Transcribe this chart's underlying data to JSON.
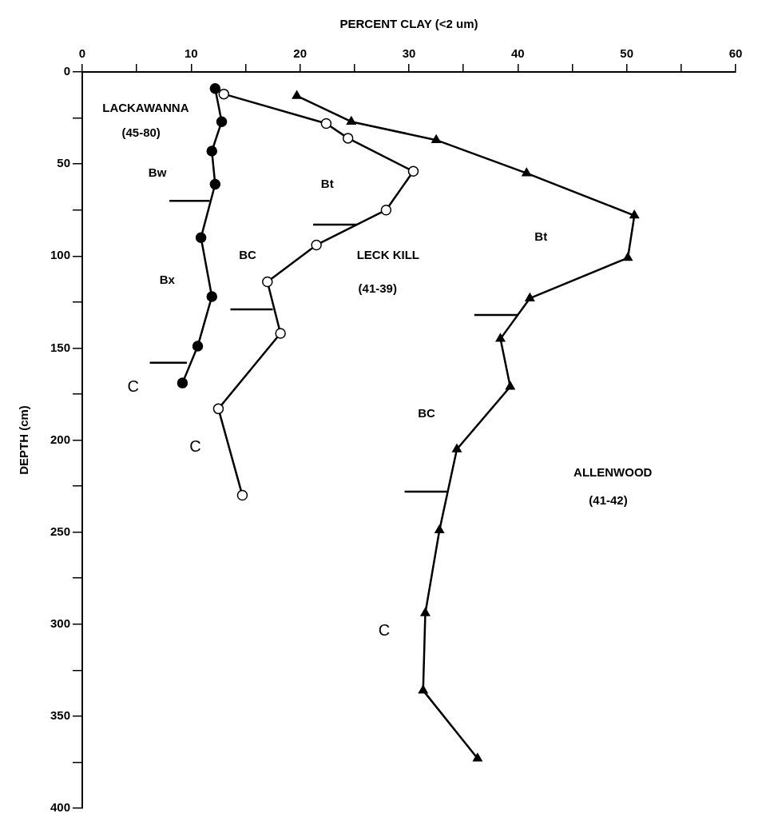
{
  "chart_data": {
    "type": "line",
    "xlabel": "PERCENT CLAY (<2 um)",
    "ylabel": "DEPTH (cm)",
    "xlim": [
      0,
      60
    ],
    "ylim": [
      400,
      0
    ],
    "xticks": [
      0,
      {
        "value": 5,
        "label": null
      },
      10,
      {
        "value": 15,
        "label": null
      },
      20,
      {
        "value": 25,
        "label": null
      },
      30,
      {
        "value": 35,
        "label": null
      },
      40,
      {
        "value": 45,
        "label": null
      },
      50,
      {
        "value": 55,
        "label": null
      },
      60
    ],
    "yticks": [
      0,
      {
        "value": 25,
        "label": null
      },
      50,
      {
        "value": 75,
        "label": null
      },
      100,
      {
        "value": 125,
        "label": null
      },
      150,
      {
        "value": 175,
        "label": null
      },
      200,
      {
        "value": 225,
        "label": null
      },
      250,
      {
        "value": 275,
        "label": null
      },
      300,
      {
        "value": 325,
        "label": null
      },
      350,
      {
        "value": 375,
        "label": null
      },
      400
    ],
    "grid": false,
    "legend": false,
    "series": [
      {
        "color": "#000000",
        "marker": "circle",
        "x": [
          12.2,
          12.8,
          11.9,
          12.2,
          10.9,
          11.9,
          10.6,
          9.2
        ],
        "values": [
          9,
          27,
          43,
          61,
          90,
          122,
          149,
          169
        ]
      },
      {
        "color": "#000000",
        "marker": "circle",
        "colors": [
          "#ffffff",
          "#ffffff",
          "#ffffff",
          "#ffffff",
          "#ffffff",
          "#ffffff",
          "#ffffff",
          "#ffffff",
          "#ffffff",
          "#ffffff"
        ],
        "x": [
          13.0,
          22.4,
          24.4,
          30.4,
          27.9,
          21.5,
          17.0,
          18.2,
          12.5,
          14.7
        ],
        "values": [
          12,
          28,
          36,
          54,
          75,
          94,
          114,
          142,
          183,
          230
        ]
      },
      {
        "color": "#000000",
        "marker": "triangle",
        "x": [
          19.7,
          24.7,
          32.5,
          40.8,
          50.7,
          50.1,
          41.1,
          38.4,
          39.3,
          34.4,
          32.8,
          31.5,
          31.3,
          36.3
        ],
        "values": [
          13,
          27,
          37,
          55,
          78,
          101,
          123,
          145,
          171,
          205,
          249,
          294,
          336,
          373
        ]
      },
      {
        "color": "#000000",
        "marker": "none",
        "x": [
          8.0,
          11.7
        ],
        "values": [
          70,
          70
        ]
      },
      {
        "color": "#000000",
        "marker": "none",
        "x": [
          6.2,
          9.6
        ],
        "values": [
          158,
          158
        ]
      },
      {
        "color": "#000000",
        "marker": "none",
        "x": [
          21.2,
          25.2
        ],
        "values": [
          83,
          83
        ]
      },
      {
        "color": "#000000",
        "marker": "none",
        "x": [
          13.6,
          17.5
        ],
        "values": [
          129,
          129
        ]
      },
      {
        "color": "#000000",
        "marker": "none",
        "x": [
          36.0,
          40.0
        ],
        "values": [
          132,
          132
        ]
      },
      {
        "color": "#000000",
        "marker": "none",
        "x": [
          29.6,
          33.5
        ],
        "values": [
          228,
          228
        ]
      }
    ],
    "annotations": [
      "LACKAWANNA",
      "(45-80)",
      "Bw",
      "Bx",
      "C",
      "Bt",
      "BC",
      "LECK KILL",
      "(41-39)",
      "C",
      "Bt",
      "BC",
      "ALLENWOOD",
      "(41-42)",
      "C"
    ]
  }
}
